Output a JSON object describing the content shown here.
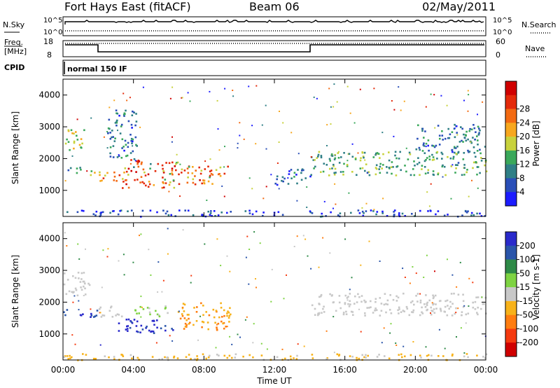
{
  "header": {
    "radar": "Fort Hays East (fitACF)",
    "beam": "Beam 06",
    "date": "02/May/2011"
  },
  "params": {
    "nsky_label": "N.Sky",
    "nsearch_label": "N.Search",
    "freq_label_1": "Freq.",
    "freq_label_2": "[MHz]",
    "nave_label": "Nave",
    "cpid_label": "CPID",
    "cpid_value": "normal 150 IF",
    "left_ticks_top": [
      "10^5",
      "10^0"
    ],
    "right_ticks_top": [
      "10^5",
      "10^0"
    ],
    "freq_ticks": [
      "18",
      "8"
    ],
    "nave_ticks": [
      "60",
      "0"
    ]
  },
  "colors": {
    "power_scale": [
      "#1c1cff",
      "#2a4fb8",
      "#2f7f86",
      "#3aa85a",
      "#c8d23c",
      "#f7a71e",
      "#f36a12",
      "#e42a0a",
      "#d00000"
    ],
    "velocity_scale": [
      "#2a2acb",
      "#2a55aa",
      "#2e8a47",
      "#7ed342",
      "#c8c8c8",
      "#f7b21a",
      "#ff7d10",
      "#f53a0f",
      "#d00000"
    ],
    "ground_scatter": "#c8c8c8"
  },
  "chart_data": [
    {
      "type": "heatmap",
      "name": "power-panel",
      "ylabel": "Slant Range [km]",
      "xlabel": "",
      "x_ticks": [
        "00:00",
        "04:00",
        "08:00",
        "12:00",
        "16:00",
        "20:00",
        "00:00"
      ],
      "x_range_hours": [
        0,
        24
      ],
      "y_ticks": [
        1000,
        2000,
        3000,
        4000
      ],
      "y_range_km": [
        180,
        4500
      ],
      "colorbar": {
        "label": "Power [dB]",
        "ticks": [
          4,
          8,
          12,
          16,
          20,
          24,
          28
        ],
        "range": [
          0,
          32
        ]
      },
      "blobs": [
        {
          "t0": 0.0,
          "t1": 1.2,
          "r0": 2250,
          "r1": 2950,
          "value": 16
        },
        {
          "t0": 0.0,
          "t1": 1.0,
          "r0": 1550,
          "r1": 1800,
          "value": 10
        },
        {
          "t0": 1.5,
          "t1": 3.2,
          "r0": 1300,
          "r1": 1650,
          "value": 22
        },
        {
          "t0": 3.3,
          "t1": 6.5,
          "r0": 1100,
          "r1": 2000,
          "value": 26
        },
        {
          "t0": 6.5,
          "t1": 9.4,
          "r0": 1200,
          "r1": 1800,
          "value": 24
        },
        {
          "t0": 2.5,
          "t1": 4.2,
          "r0": 2000,
          "r1": 3600,
          "value": 8
        },
        {
          "t0": 14.0,
          "t1": 24.0,
          "r0": 1500,
          "r1": 2250,
          "value": 12
        },
        {
          "t0": 20.0,
          "t1": 24.0,
          "r0": 2200,
          "r1": 3100,
          "value": 8
        },
        {
          "t0": 12.0,
          "t1": 14.0,
          "r0": 1200,
          "r1": 1700,
          "value": 6
        },
        {
          "t0": 0.0,
          "t1": 24.0,
          "r0": 200,
          "r1": 400,
          "value": 4
        }
      ]
    },
    {
      "type": "heatmap",
      "name": "velocity-panel",
      "ylabel": "Slant Range [km]",
      "xlabel": "Time UT",
      "x_ticks": [
        "00:00",
        "04:00",
        "08:00",
        "12:00",
        "16:00",
        "20:00",
        "00:00"
      ],
      "x_range_hours": [
        0,
        24
      ],
      "y_ticks": [
        1000,
        2000,
        3000,
        4000
      ],
      "y_range_km": [
        180,
        4500
      ],
      "colorbar": {
        "label": "Velocity [m s-1]",
        "ticks": [
          200,
          100,
          50,
          15,
          -15,
          -50,
          -100,
          -200
        ],
        "range": [
          -250,
          250
        ]
      },
      "blobs": [
        {
          "t0": 0.0,
          "t1": 1.5,
          "r0": 2200,
          "r1": 3000,
          "value": 0
        },
        {
          "t0": 0.0,
          "t1": 2.0,
          "r0": 1550,
          "r1": 1800,
          "value": 180
        },
        {
          "t0": 2.0,
          "t1": 3.3,
          "r0": 1500,
          "r1": 1900,
          "value": 0
        },
        {
          "t0": 3.0,
          "t1": 6.5,
          "r0": 1050,
          "r1": 1500,
          "value": 210
        },
        {
          "t0": 4.0,
          "t1": 6.0,
          "r0": 1550,
          "r1": 1900,
          "value": 40
        },
        {
          "t0": 6.5,
          "t1": 9.5,
          "r0": 1150,
          "r1": 2000,
          "value": -80
        },
        {
          "t0": 14.0,
          "t1": 24.0,
          "r0": 1600,
          "r1": 2300,
          "value": 0
        },
        {
          "t0": 0.0,
          "t1": 24.0,
          "r0": 200,
          "r1": 400,
          "value": -40
        }
      ]
    }
  ]
}
